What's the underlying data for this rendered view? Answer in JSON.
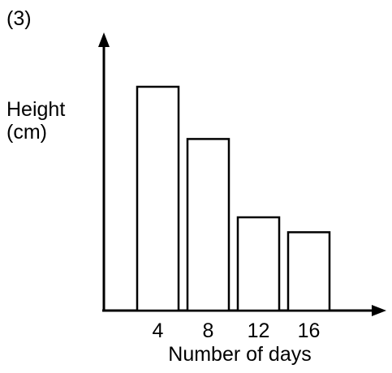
{
  "question_number": "(3)",
  "chart_data": {
    "type": "bar",
    "title": "",
    "xlabel": "Number of days",
    "ylabel_lines": [
      "Height",
      "(cm)"
    ],
    "categories": [
      "4",
      "8",
      "12",
      "16"
    ],
    "values": [
      6.0,
      4.6,
      2.5,
      2.1
    ],
    "y_tick_labels_shown": false,
    "grid": false,
    "legend": "none",
    "colors": {
      "bar_fill": "#ffffff",
      "bar_stroke": "#000000",
      "axis": "#000000"
    }
  }
}
